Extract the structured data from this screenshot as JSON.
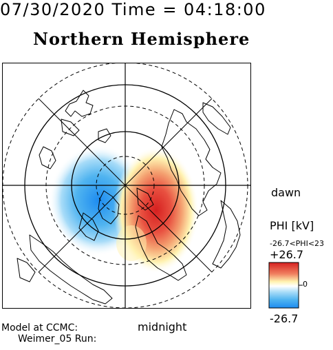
{
  "header": {
    "time_line": "07/30/2020 Time = 04:18:00",
    "title": "Northern Hemisphere"
  },
  "map": {
    "projection": "polar-stereographic",
    "hemisphere": "north",
    "dawn_label": "dawn",
    "midnight_label": "midnight",
    "overlays": [
      "coastlines",
      "latitude-circles",
      "longitude-spokes",
      "local-time-crosshair"
    ],
    "potential_pattern": [
      {
        "name": "negative-cell",
        "sign": "-",
        "color": "#1e8cf0"
      },
      {
        "name": "positive-cell",
        "sign": "+",
        "color": "#e02020"
      }
    ]
  },
  "colorbar": {
    "variable_label": "PHI [kV]",
    "range_label": "-26.7<PHI<23",
    "max_label": "+26.7",
    "zero_label": "0",
    "min_label": "-26.7",
    "colors": [
      "#d62020",
      "#f08060",
      "#fff2b0",
      "#ffffff",
      "#a8dcf8",
      "#50b4f0",
      "#1e8cf0"
    ]
  },
  "footer": {
    "model_label": "Model at CCMC:",
    "run_label": "Weimer_05 Run:"
  }
}
